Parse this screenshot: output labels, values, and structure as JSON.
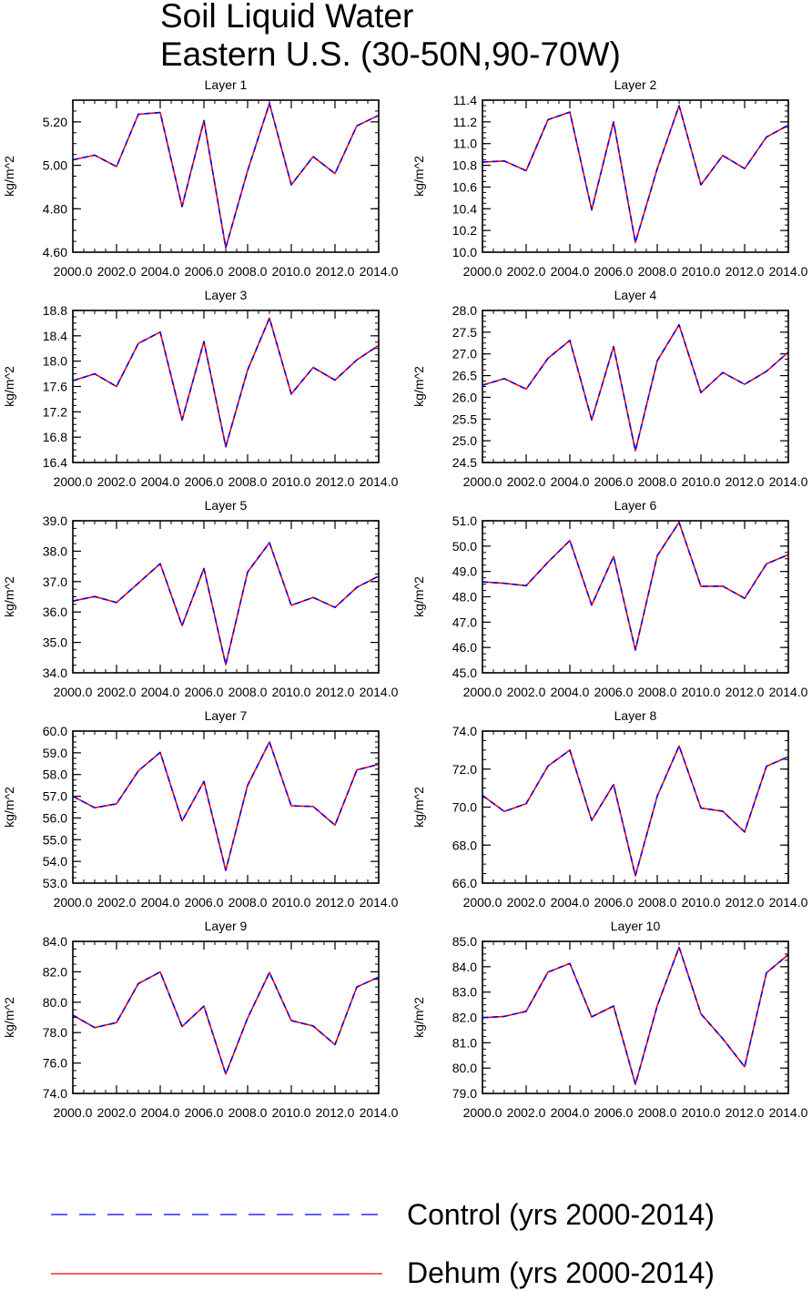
{
  "figure": {
    "title_line1": "Soil Liquid Water",
    "title_line2": "Eastern U.S. (30-50N,90-70W)",
    "legend": [
      {
        "label": "Control (yrs 2000-2014)",
        "color": "#0000ff",
        "style": "dashed"
      },
      {
        "label": "Dehum (yrs 2000-2014)",
        "color": "#ff0000",
        "style": "solid"
      }
    ]
  },
  "chart_data": [
    {
      "type": "line",
      "title": "Layer 1",
      "xlabel": "",
      "ylabel": "kg/m^2",
      "x": [
        2000,
        2001,
        2002,
        2003,
        2004,
        2005,
        2006,
        2007,
        2008,
        2009,
        2010,
        2011,
        2012,
        2013,
        2014
      ],
      "xlim": [
        2000,
        2014
      ],
      "xticks": [
        "2000.0",
        "2002.0",
        "2004.0",
        "2006.0",
        "2008.0",
        "2010.0",
        "2012.0",
        "2014.0"
      ],
      "ylim": [
        4.6,
        5.3
      ],
      "yticks": [
        4.6,
        4.8,
        5.0,
        5.2
      ],
      "ytick_labels": [
        "4.60",
        "4.80",
        "5.00",
        "5.20"
      ],
      "series": [
        {
          "name": "Control (yrs 2000-2014)",
          "values": [
            5.025,
            5.047,
            4.994,
            5.235,
            5.243,
            4.81,
            5.206,
            4.62,
            4.975,
            5.285,
            4.91,
            5.04,
            4.962,
            5.182,
            5.23
          ]
        },
        {
          "name": "Dehum (yrs 2000-2014)",
          "values": [
            5.025,
            5.047,
            4.994,
            5.235,
            5.243,
            4.81,
            5.206,
            4.62,
            4.975,
            5.285,
            4.91,
            5.04,
            4.962,
            5.182,
            5.23
          ]
        }
      ]
    },
    {
      "type": "line",
      "title": "Layer 2",
      "xlabel": "",
      "ylabel": "kg/m^2",
      "x": [
        2000,
        2001,
        2002,
        2003,
        2004,
        2005,
        2006,
        2007,
        2008,
        2009,
        2010,
        2011,
        2012,
        2013,
        2014
      ],
      "xlim": [
        2000,
        2014
      ],
      "xticks": [
        "2000.0",
        "2002.0",
        "2004.0",
        "2006.0",
        "2008.0",
        "2010.0",
        "2012.0",
        "2014.0"
      ],
      "ylim": [
        10.0,
        11.4
      ],
      "yticks": [
        10.0,
        10.2,
        10.4,
        10.6,
        10.8,
        11.0,
        11.2,
        11.4
      ],
      "ytick_labels": [
        "10.0",
        "10.2",
        "10.4",
        "10.6",
        "10.8",
        "11.0",
        "11.2",
        "11.4"
      ],
      "series": [
        {
          "name": "Control (yrs 2000-2014)",
          "values": [
            10.83,
            10.84,
            10.75,
            11.22,
            11.29,
            10.39,
            11.2,
            10.09,
            10.77,
            11.35,
            10.62,
            10.89,
            10.77,
            11.06,
            11.17
          ]
        },
        {
          "name": "Dehum (yrs 2000-2014)",
          "values": [
            10.83,
            10.84,
            10.75,
            11.22,
            11.29,
            10.39,
            11.2,
            10.09,
            10.77,
            11.35,
            10.62,
            10.89,
            10.77,
            11.06,
            11.17
          ]
        }
      ]
    },
    {
      "type": "line",
      "title": "Layer 3",
      "xlabel": "",
      "ylabel": "kg/m^2",
      "x": [
        2000,
        2001,
        2002,
        2003,
        2004,
        2005,
        2006,
        2007,
        2008,
        2009,
        2010,
        2011,
        2012,
        2013,
        2014
      ],
      "xlim": [
        2000,
        2014
      ],
      "xticks": [
        "2000.0",
        "2002.0",
        "2004.0",
        "2006.0",
        "2008.0",
        "2010.0",
        "2012.0",
        "2014.0"
      ],
      "ylim": [
        16.4,
        18.8
      ],
      "yticks": [
        16.4,
        16.8,
        17.2,
        17.6,
        18.0,
        18.4,
        18.8
      ],
      "ytick_labels": [
        "16.4",
        "16.8",
        "17.2",
        "17.6",
        "18.0",
        "18.4",
        "18.8"
      ],
      "series": [
        {
          "name": "Control (yrs 2000-2014)",
          "values": [
            17.69,
            17.8,
            17.6,
            18.28,
            18.46,
            17.07,
            18.31,
            16.65,
            17.86,
            18.68,
            17.48,
            17.9,
            17.7,
            18.02,
            18.25
          ]
        },
        {
          "name": "Dehum (yrs 2000-2014)",
          "values": [
            17.69,
            17.8,
            17.6,
            18.28,
            18.46,
            17.07,
            18.31,
            16.65,
            17.86,
            18.68,
            17.48,
            17.9,
            17.7,
            18.02,
            18.25
          ]
        }
      ]
    },
    {
      "type": "line",
      "title": "Layer 4",
      "xlabel": "",
      "ylabel": "kg/m^2",
      "x": [
        2000,
        2001,
        2002,
        2003,
        2004,
        2005,
        2006,
        2007,
        2008,
        2009,
        2010,
        2011,
        2012,
        2013,
        2014
      ],
      "xlim": [
        2000,
        2014
      ],
      "xticks": [
        "2000.0",
        "2002.0",
        "2004.0",
        "2006.0",
        "2008.0",
        "2010.0",
        "2012.0",
        "2014.0"
      ],
      "ylim": [
        24.5,
        28.0
      ],
      "yticks": [
        24.5,
        25.0,
        25.5,
        26.0,
        26.5,
        27.0,
        27.5,
        28.0
      ],
      "ytick_labels": [
        "24.5",
        "25.0",
        "25.5",
        "26.0",
        "26.5",
        "27.0",
        "27.5",
        "28.0"
      ],
      "series": [
        {
          "name": "Control (yrs 2000-2014)",
          "values": [
            26.28,
            26.43,
            26.19,
            26.9,
            27.31,
            25.48,
            27.17,
            24.77,
            26.84,
            27.67,
            26.11,
            26.57,
            26.3,
            26.6,
            27.04
          ]
        },
        {
          "name": "Dehum (yrs 2000-2014)",
          "values": [
            26.28,
            26.43,
            26.19,
            26.9,
            27.31,
            25.48,
            27.17,
            24.77,
            26.84,
            27.67,
            26.11,
            26.57,
            26.3,
            26.6,
            27.04
          ]
        }
      ]
    },
    {
      "type": "line",
      "title": "Layer 5",
      "xlabel": "",
      "ylabel": "kg/m^2",
      "x": [
        2000,
        2001,
        2002,
        2003,
        2004,
        2005,
        2006,
        2007,
        2008,
        2009,
        2010,
        2011,
        2012,
        2013,
        2014
      ],
      "xlim": [
        2000,
        2014
      ],
      "xticks": [
        "2000.0",
        "2002.0",
        "2004.0",
        "2006.0",
        "2008.0",
        "2010.0",
        "2012.0",
        "2014.0"
      ],
      "ylim": [
        34.0,
        39.0
      ],
      "yticks": [
        34.0,
        35.0,
        36.0,
        37.0,
        38.0,
        39.0
      ],
      "ytick_labels": [
        "34.0",
        "35.0",
        "36.0",
        "37.0",
        "38.0",
        "39.0"
      ],
      "series": [
        {
          "name": "Control (yrs 2000-2014)",
          "values": [
            36.36,
            36.51,
            36.31,
            36.95,
            37.59,
            35.55,
            37.43,
            34.27,
            37.31,
            38.28,
            36.22,
            36.48,
            36.15,
            36.81,
            37.18
          ]
        },
        {
          "name": "Dehum (yrs 2000-2014)",
          "values": [
            36.36,
            36.51,
            36.31,
            36.95,
            37.59,
            35.55,
            37.43,
            34.27,
            37.31,
            38.28,
            36.22,
            36.48,
            36.15,
            36.81,
            37.18
          ]
        }
      ]
    },
    {
      "type": "line",
      "title": "Layer 6",
      "xlabel": "",
      "ylabel": "kg/m^2",
      "x": [
        2000,
        2001,
        2002,
        2003,
        2004,
        2005,
        2006,
        2007,
        2008,
        2009,
        2010,
        2011,
        2012,
        2013,
        2014
      ],
      "xlim": [
        2000,
        2014
      ],
      "xticks": [
        "2000.0",
        "2002.0",
        "2004.0",
        "2006.0",
        "2008.0",
        "2010.0",
        "2012.0",
        "2014.0"
      ],
      "ylim": [
        45.0,
        51.0
      ],
      "yticks": [
        45.0,
        46.0,
        47.0,
        48.0,
        49.0,
        50.0,
        51.0
      ],
      "ytick_labels": [
        "45.0",
        "46.0",
        "47.0",
        "48.0",
        "49.0",
        "50.0",
        "51.0"
      ],
      "series": [
        {
          "name": "Control (yrs 2000-2014)",
          "values": [
            48.59,
            48.53,
            48.44,
            49.37,
            50.22,
            47.67,
            49.59,
            45.9,
            49.62,
            50.94,
            48.41,
            48.42,
            47.94,
            49.3,
            49.66
          ]
        },
        {
          "name": "Dehum (yrs 2000-2014)",
          "values": [
            48.59,
            48.53,
            48.44,
            49.37,
            50.22,
            47.67,
            49.59,
            45.9,
            49.62,
            50.94,
            48.41,
            48.42,
            47.94,
            49.3,
            49.66
          ]
        }
      ]
    },
    {
      "type": "line",
      "title": "Layer 7",
      "xlabel": "",
      "ylabel": "kg/m^2",
      "x": [
        2000,
        2001,
        2002,
        2003,
        2004,
        2005,
        2006,
        2007,
        2008,
        2009,
        2010,
        2011,
        2012,
        2013,
        2014
      ],
      "xlim": [
        2000,
        2014
      ],
      "xticks": [
        "2000.0",
        "2002.0",
        "2004.0",
        "2006.0",
        "2008.0",
        "2010.0",
        "2012.0",
        "2014.0"
      ],
      "ylim": [
        53.0,
        60.0
      ],
      "yticks": [
        53.0,
        54.0,
        55.0,
        56.0,
        57.0,
        58.0,
        59.0,
        60.0
      ],
      "ytick_labels": [
        "53.0",
        "54.0",
        "55.0",
        "56.0",
        "57.0",
        "58.0",
        "59.0",
        "60.0"
      ],
      "series": [
        {
          "name": "Control (yrs 2000-2014)",
          "values": [
            57.0,
            56.47,
            56.65,
            58.17,
            59.02,
            55.86,
            57.68,
            53.59,
            57.5,
            59.5,
            56.56,
            56.53,
            55.67,
            58.21,
            58.47
          ]
        },
        {
          "name": "Dehum (yrs 2000-2014)",
          "values": [
            57.0,
            56.47,
            56.65,
            58.17,
            59.02,
            55.86,
            57.68,
            53.59,
            57.5,
            59.5,
            56.56,
            56.53,
            55.67,
            58.21,
            58.47
          ]
        }
      ]
    },
    {
      "type": "line",
      "title": "Layer 8",
      "xlabel": "",
      "ylabel": "kg/m^2",
      "x": [
        2000,
        2001,
        2002,
        2003,
        2004,
        2005,
        2006,
        2007,
        2008,
        2009,
        2010,
        2011,
        2012,
        2013,
        2014
      ],
      "xlim": [
        2000,
        2014
      ],
      "xticks": [
        "2000.0",
        "2002.0",
        "2004.0",
        "2006.0",
        "2008.0",
        "2010.0",
        "2012.0",
        "2014.0"
      ],
      "ylim": [
        66.0,
        74.0
      ],
      "yticks": [
        66.0,
        68.0,
        70.0,
        72.0,
        74.0
      ],
      "ytick_labels": [
        "66.0",
        "68.0",
        "70.0",
        "72.0",
        "74.0"
      ],
      "series": [
        {
          "name": "Control (yrs 2000-2014)",
          "values": [
            70.62,
            69.77,
            70.18,
            72.16,
            73.0,
            69.3,
            71.19,
            66.39,
            70.58,
            73.22,
            69.95,
            69.78,
            68.69,
            72.15,
            72.65
          ]
        },
        {
          "name": "Dehum (yrs 2000-2014)",
          "values": [
            70.62,
            69.77,
            70.18,
            72.16,
            73.0,
            69.3,
            71.19,
            66.39,
            70.58,
            73.22,
            69.95,
            69.78,
            68.69,
            72.15,
            72.65
          ]
        }
      ]
    },
    {
      "type": "line",
      "title": "Layer 9",
      "xlabel": "",
      "ylabel": "kg/m^2",
      "x": [
        2000,
        2001,
        2002,
        2003,
        2004,
        2005,
        2006,
        2007,
        2008,
        2009,
        2010,
        2011,
        2012,
        2013,
        2014
      ],
      "xlim": [
        2000,
        2014
      ],
      "xticks": [
        "2000.0",
        "2002.0",
        "2004.0",
        "2006.0",
        "2008.0",
        "2010.0",
        "2012.0",
        "2014.0"
      ],
      "ylim": [
        74.0,
        84.0
      ],
      "yticks": [
        74.0,
        76.0,
        78.0,
        80.0,
        82.0,
        84.0
      ],
      "ytick_labels": [
        "74.0",
        "76.0",
        "78.0",
        "80.0",
        "82.0",
        "84.0"
      ],
      "series": [
        {
          "name": "Control (yrs 2000-2014)",
          "values": [
            79.15,
            78.33,
            78.66,
            81.23,
            81.99,
            78.4,
            79.74,
            75.28,
            78.95,
            81.96,
            78.79,
            78.44,
            77.21,
            81.0,
            81.65
          ]
        },
        {
          "name": "Dehum (yrs 2000-2014)",
          "values": [
            79.15,
            78.33,
            78.66,
            81.23,
            81.99,
            78.4,
            79.74,
            75.28,
            78.95,
            81.96,
            78.79,
            78.44,
            77.21,
            81.0,
            81.65
          ]
        }
      ]
    },
    {
      "type": "line",
      "title": "Layer 10",
      "xlabel": "",
      "ylabel": "kg/m^2",
      "x": [
        2000,
        2001,
        2002,
        2003,
        2004,
        2005,
        2006,
        2007,
        2008,
        2009,
        2010,
        2011,
        2012,
        2013,
        2014
      ],
      "xlim": [
        2000,
        2014
      ],
      "xticks": [
        "2000.0",
        "2002.0",
        "2004.0",
        "2006.0",
        "2008.0",
        "2010.0",
        "2012.0",
        "2014.0"
      ],
      "ylim": [
        79.0,
        85.0
      ],
      "yticks": [
        79.0,
        80.0,
        81.0,
        82.0,
        83.0,
        84.0,
        85.0
      ],
      "ytick_labels": [
        "79.0",
        "80.0",
        "81.0",
        "82.0",
        "83.0",
        "84.0",
        "85.0"
      ],
      "series": [
        {
          "name": "Control (yrs 2000-2014)",
          "values": [
            81.99,
            82.04,
            82.24,
            83.79,
            84.13,
            82.02,
            82.45,
            79.36,
            82.46,
            84.77,
            82.14,
            81.16,
            80.05,
            83.76,
            84.48
          ]
        },
        {
          "name": "Dehum (yrs 2000-2014)",
          "values": [
            81.99,
            82.04,
            82.24,
            83.79,
            84.13,
            82.02,
            82.45,
            79.36,
            82.46,
            84.77,
            82.14,
            81.16,
            80.05,
            83.76,
            84.48
          ]
        }
      ]
    }
  ]
}
